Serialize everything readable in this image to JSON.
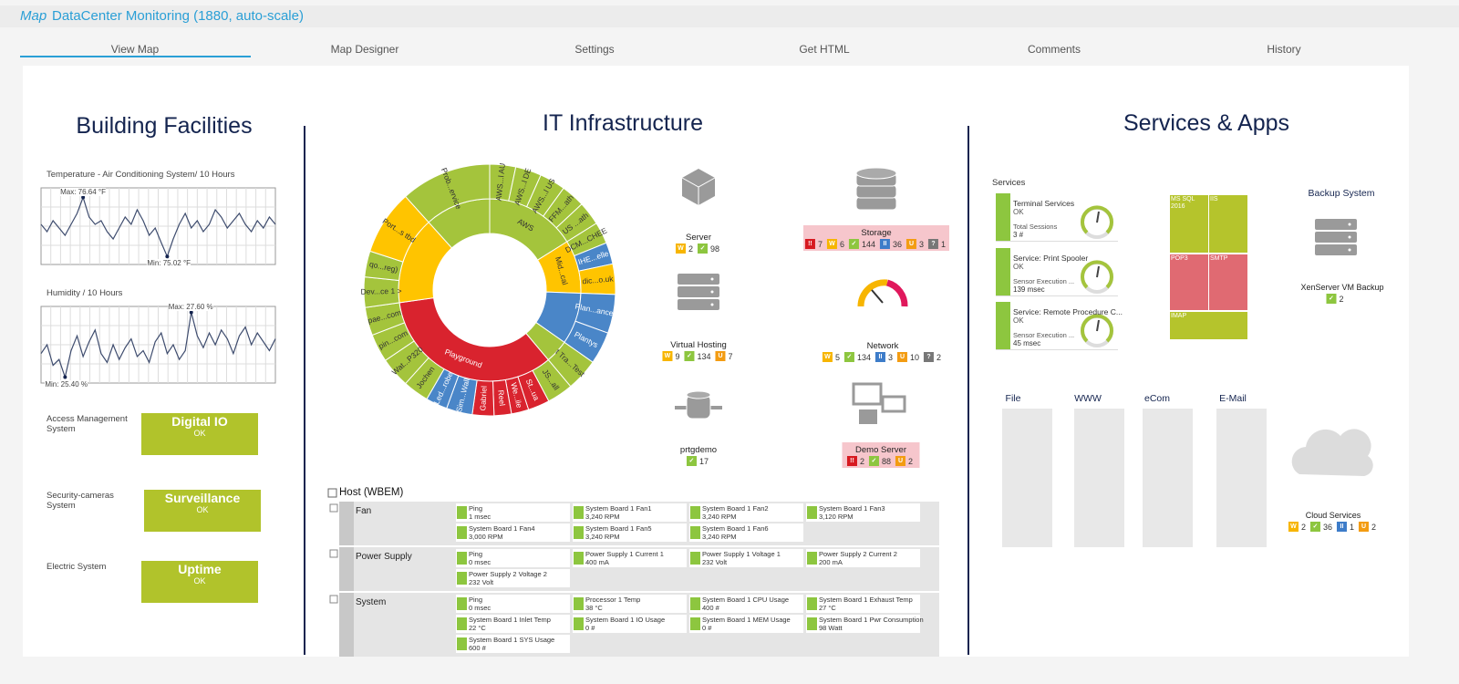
{
  "header": {
    "prefix": "Map",
    "title": "DataCenter Monitoring (1880, auto-scale)"
  },
  "tabs": [
    "View Map",
    "Map Designer",
    "Settings",
    "Get HTML",
    "Comments",
    "History"
  ],
  "building": {
    "title": "Building Facilities",
    "charts": [
      {
        "type": "line",
        "title": "Temperature - Air Conditioning System/ 10 Hours",
        "color": "#3e4c6e",
        "ylim": [
          74.8,
          76.9
        ],
        "max_label": "Max: 76.64 °F",
        "min_label": "Min: 75.02 °F",
        "values": [
          75.9,
          75.7,
          76.0,
          75.8,
          75.6,
          75.9,
          76.2,
          76.64,
          76.1,
          75.9,
          76.0,
          75.7,
          75.5,
          75.8,
          76.1,
          75.9,
          76.3,
          76.0,
          75.6,
          75.8,
          75.4,
          75.02,
          75.5,
          75.9,
          76.2,
          75.8,
          76.0,
          75.7,
          75.9,
          76.3,
          76.1,
          75.8,
          76.0,
          76.2,
          75.9,
          75.7,
          76.0,
          75.8,
          76.1,
          75.9
        ]
      },
      {
        "type": "line",
        "title": "Humidity / 10 Hours",
        "color": "#3e4c6e",
        "ylim": [
          25.2,
          27.8
        ],
        "max_label": "Max: 27.60 %",
        "min_label": "Min: 25.40 %",
        "values": [
          26.2,
          26.5,
          25.8,
          26.0,
          25.4,
          26.3,
          26.8,
          26.1,
          26.6,
          27.0,
          26.2,
          25.9,
          26.5,
          26.0,
          26.4,
          26.7,
          26.1,
          26.3,
          25.9,
          26.6,
          26.9,
          26.2,
          26.5,
          26.0,
          26.3,
          27.6,
          26.8,
          26.4,
          26.9,
          26.5,
          27.0,
          26.7,
          26.2,
          26.8,
          27.1,
          26.5,
          26.9,
          26.6,
          26.3,
          26.7
        ]
      }
    ],
    "status": [
      {
        "label": "Access Management System",
        "name": "Digital IO",
        "state": "OK"
      },
      {
        "label": "Security-cameras System",
        "name": "Surveillance",
        "state": "OK"
      },
      {
        "label": "Electric System",
        "name": "Uptime",
        "state": "OK"
      }
    ]
  },
  "it": {
    "title": "IT Infrastructure",
    "sunburst": {
      "type": "sunburst",
      "inner": [
        {
          "value": 58,
          "color": "#a4c43c",
          "label": "AWS"
        },
        {
          "value": 34,
          "color": "#ffc400",
          "label": "Mid...cal"
        },
        {
          "value": 33,
          "color": "#4a86c8"
        },
        {
          "value": 15,
          "color": "#a4c43c"
        },
        {
          "value": 122,
          "color": "#d9232e",
          "label": "Playground"
        },
        {
          "value": 56,
          "color": "#ffc400"
        },
        {
          "value": 42,
          "color": "#a4c43c"
        }
      ],
      "outer": [
        {
          "value": 12,
          "color": "#a4c43c",
          "label": "AWS...l AU"
        },
        {
          "value": 12,
          "color": "#a4c43c",
          "label": "AWS...l DE"
        },
        {
          "value": 12,
          "color": "#a4c43c",
          "label": "AWS...l US"
        },
        {
          "value": 11,
          "color": "#a4c43c",
          "label": "FFM...ath"
        },
        {
          "value": 11,
          "color": "#a4c43c",
          "label": "US ...ath"
        },
        {
          "value": 10,
          "color": "#a4c43c",
          "label": "DCM...CHEE"
        },
        {
          "value": 10,
          "color": "#4a86c8",
          "label": "IHE...elle"
        },
        {
          "value": 14,
          "color": "#ffc400",
          "label": "dic...o.uk"
        },
        {
          "value": 18,
          "color": "#4a86c8",
          "label": "Plan...anced"
        },
        {
          "value": 15,
          "color": "#4a86c8",
          "label": "Plantys"
        },
        {
          "value": 15,
          "color": "#a4c43c",
          "label": "t Tra...Test"
        },
        {
          "value": 12,
          "color": "#a4c43c",
          "label": "JS...all"
        },
        {
          "value": 10,
          "color": "#d9232e",
          "label": "St...ua"
        },
        {
          "value": 8,
          "color": "#d9232e",
          "label": "We...ile"
        },
        {
          "value": 8,
          "color": "#d9232e",
          "label": "Reel"
        },
        {
          "value": 10,
          "color": "#d9232e",
          "label": "Gabriel"
        },
        {
          "value": 12,
          "color": "#4a86c8",
          "label": "Sim...Wall"
        },
        {
          "value": 10,
          "color": "#4a86c8",
          "label": "Led...robe"
        },
        {
          "value": 12,
          "color": "#a4c43c",
          "label": "Jochen"
        },
        {
          "value": 14,
          "color": "#a4c43c",
          "label": "Wat...P320"
        },
        {
          "value": 13,
          "color": "#a4c43c",
          "label": "pin...com"
        },
        {
          "value": 13,
          "color": "#a4c43c",
          "label": "pae...com"
        },
        {
          "value": 14,
          "color": "#a4c43c",
          "label": "Dev...ce 1 >"
        },
        {
          "value": 12,
          "color": "#a4c43c",
          "label": "qo...reg)"
        },
        {
          "value": 30,
          "color": "#ffc400",
          "label": "Port...s tbd"
        },
        {
          "value": 42,
          "color": "#a4c43c",
          "label": "Prob...ervice"
        }
      ]
    },
    "devices": [
      {
        "label": "Server",
        "alert": false,
        "badges": [
          {
            "icon": "W",
            "count": 2,
            "color": "#f7b500"
          },
          {
            "icon": "✓",
            "count": 98,
            "color": "#8dc63f"
          }
        ]
      },
      {
        "label": "Storage",
        "alert": true,
        "badges": [
          {
            "icon": "!!",
            "count": 7,
            "color": "#d71920"
          },
          {
            "icon": "W",
            "count": 6,
            "color": "#f7b500"
          },
          {
            "icon": "✓",
            "count": 144,
            "color": "#8dc63f"
          },
          {
            "icon": "II",
            "count": 36,
            "color": "#3d7cc9"
          },
          {
            "icon": "U",
            "count": 3,
            "color": "#f39c12"
          },
          {
            "icon": "?",
            "count": 1,
            "color": "#777777"
          }
        ]
      },
      {
        "label": "Virtual Hosting",
        "alert": false,
        "badges": [
          {
            "icon": "W",
            "count": 9,
            "color": "#f7b500"
          },
          {
            "icon": "✓",
            "count": 134,
            "color": "#8dc63f"
          },
          {
            "icon": "U",
            "count": 7,
            "color": "#f39c12"
          }
        ]
      },
      {
        "label": "Network",
        "alert": false,
        "badges": [
          {
            "icon": "W",
            "count": 5,
            "color": "#f7b500"
          },
          {
            "icon": "✓",
            "count": 134,
            "color": "#8dc63f"
          },
          {
            "icon": "II",
            "count": 3,
            "color": "#3d7cc9"
          },
          {
            "icon": "U",
            "count": 10,
            "color": "#f39c12"
          },
          {
            "icon": "?",
            "count": 2,
            "color": "#777777"
          }
        ]
      },
      {
        "label": "prtgdemo",
        "alert": false,
        "badges": [
          {
            "icon": "✓",
            "count": 17,
            "color": "#8dc63f"
          }
        ]
      },
      {
        "label": "Demo Server",
        "alert": true,
        "badges": [
          {
            "icon": "!!",
            "count": 2,
            "color": "#d71920"
          },
          {
            "icon": "✓",
            "count": 88,
            "color": "#8dc63f"
          },
          {
            "icon": "U",
            "count": 2,
            "color": "#f39c12"
          }
        ]
      }
    ],
    "host": {
      "title": "Host (WBEM)",
      "groups": [
        {
          "name": "Fan",
          "sensors": [
            {
              "name": "Ping",
              "value": "1 msec"
            },
            {
              "name": "System Board 1 Fan1",
              "value": "3,240 RPM"
            },
            {
              "name": "System Board 1 Fan2",
              "value": "3,240 RPM"
            },
            {
              "name": "System Board 1 Fan3",
              "value": "3,120 RPM"
            },
            {
              "name": "System Board 1 Fan4",
              "value": "3,000 RPM"
            },
            {
              "name": "System Board 1 Fan5",
              "value": "3,240 RPM"
            },
            {
              "name": "System Board 1 Fan6",
              "value": "3,240 RPM"
            }
          ]
        },
        {
          "name": "Power Supply",
          "sensors": [
            {
              "name": "Ping",
              "value": "0 msec"
            },
            {
              "name": "Power Supply 1 Current 1",
              "value": "400 mA"
            },
            {
              "name": "Power Supply 1 Voltage 1",
              "value": "232 Volt"
            },
            {
              "name": "Power Supply 2 Current 2",
              "value": "200 mA"
            },
            {
              "name": "Power Supply 2 Voltage 2",
              "value": "232 Volt"
            }
          ]
        },
        {
          "name": "System",
          "sensors": [
            {
              "name": "Ping",
              "value": "0 msec"
            },
            {
              "name": "Processor 1 Temp",
              "value": "38 °C"
            },
            {
              "name": "System Board 1 CPU Usage",
              "value": "400 #"
            },
            {
              "name": "System Board 1 Exhaust Temp",
              "value": "27 °C"
            },
            {
              "name": "System Board 1 Inlet Temp",
              "value": "22 °C"
            },
            {
              "name": "System Board 1 IO Usage",
              "value": "0 #"
            },
            {
              "name": "System Board 1 MEM Usage",
              "value": "0 #"
            },
            {
              "name": "System Board 1 Pwr Consumption",
              "value": "98 Watt"
            },
            {
              "name": "System Board 1 SYS Usage",
              "value": "600 #"
            }
          ]
        }
      ]
    }
  },
  "services": {
    "title": "Services & Apps",
    "heading": "Services",
    "cards": [
      {
        "name": "Terminal Services",
        "state": "OK",
        "sub": "Total Sessions",
        "value": "3 #"
      },
      {
        "name": "Service: Print Spooler",
        "state": "OK",
        "sub": "Sensor Execution ...",
        "value": "139 msec"
      },
      {
        "name": "Service: Remote Procedure C...",
        "state": "OK",
        "sub": "Sensor Execution ...",
        "value": "45 msec"
      }
    ],
    "treemap": [
      {
        "label": "MS SQL 2016",
        "color": "#b5c42c"
      },
      {
        "label": "IIS",
        "color": "#b5c42c"
      },
      {
        "label": "POP3",
        "color": "#e06a72"
      },
      {
        "label": "SMTP",
        "color": "#e06a72"
      },
      {
        "label": "IMAP",
        "color": "#b5c42c"
      }
    ],
    "backup": {
      "title": "Backup System",
      "label": "XenServer VM Backup",
      "badges": [
        {
          "icon": "✓",
          "count": 2,
          "color": "#8dc63f"
        }
      ]
    },
    "lights": [
      "File",
      "WWW",
      "eCom",
      "E-Mail"
    ],
    "cloud": {
      "label": "Cloud Services",
      "badges": [
        {
          "icon": "W",
          "count": 2,
          "color": "#f7b500"
        },
        {
          "icon": "✓",
          "count": 36,
          "color": "#8dc63f"
        },
        {
          "icon": "II",
          "count": 1,
          "color": "#3d7cc9"
        },
        {
          "icon": "U",
          "count": 2,
          "color": "#f39c12"
        }
      ]
    }
  }
}
